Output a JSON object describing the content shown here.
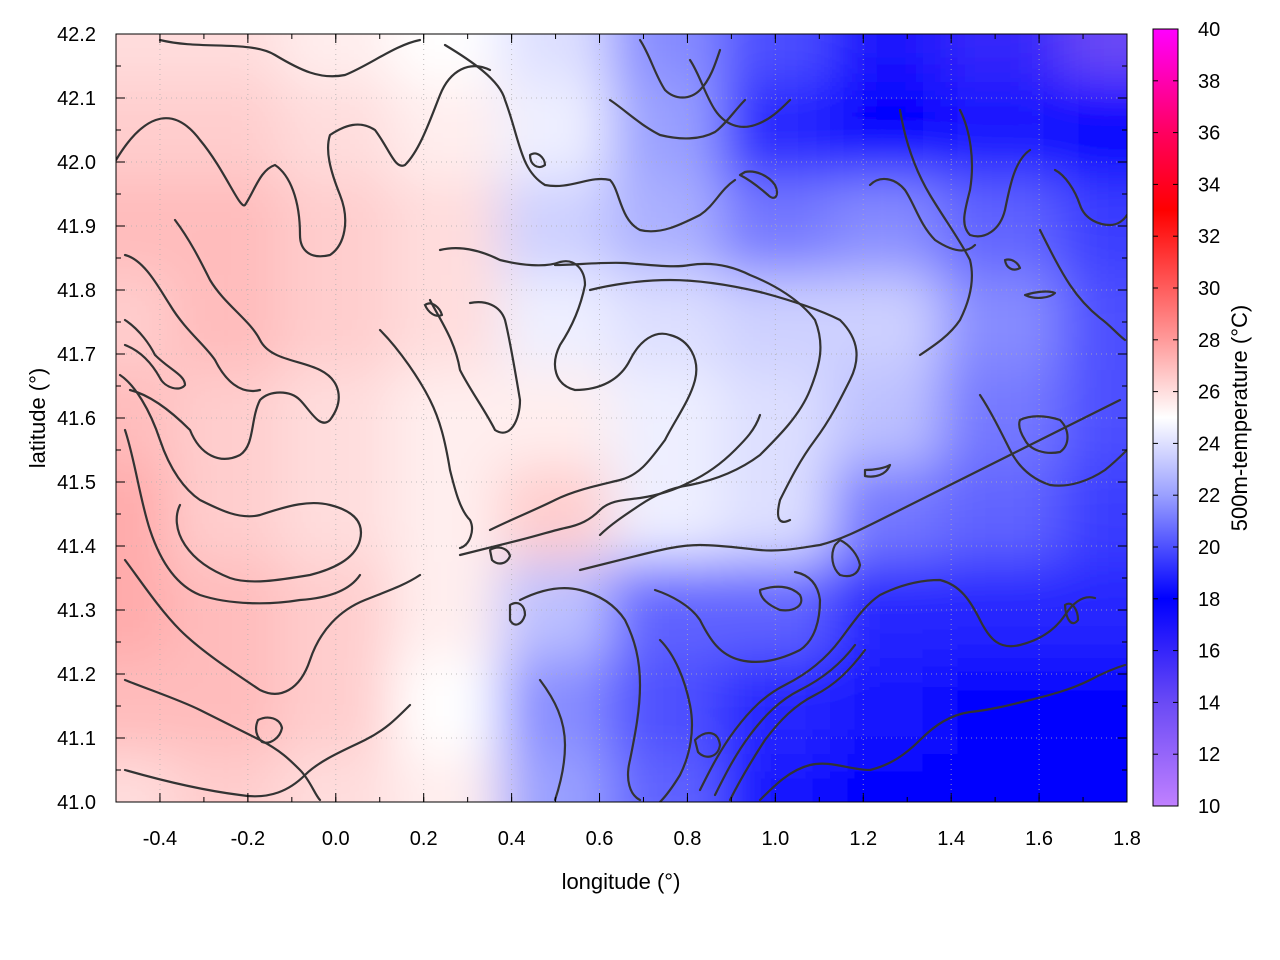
{
  "chart_data": {
    "type": "heatmap",
    "title": "",
    "xlabel": "longitude (°)",
    "ylabel": "latitude (°)",
    "colorbar_label": "500m-temperature (°C)",
    "xlim": [
      -0.5,
      1.8
    ],
    "ylim": [
      41.0,
      42.2
    ],
    "clim": [
      10,
      40
    ],
    "x_ticks": [
      -0.4,
      -0.2,
      0.0,
      0.2,
      0.4,
      0.6,
      0.8,
      1.0,
      1.2,
      1.4,
      1.6,
      1.8
    ],
    "x_tick_labels": [
      "-0.4",
      "-0.2",
      "0.0",
      "0.2",
      "0.4",
      "0.6",
      "0.8",
      "1.0",
      "1.2",
      "1.4",
      "1.6",
      "1.8"
    ],
    "y_ticks": [
      41.0,
      41.1,
      41.2,
      41.3,
      41.4,
      41.5,
      41.6,
      41.7,
      41.8,
      41.9,
      42.0,
      42.1,
      42.2
    ],
    "y_tick_labels": [
      "41.0",
      "41.1",
      "41.2",
      "41.3",
      "41.4",
      "41.5",
      "41.6",
      "41.7",
      "41.8",
      "41.9",
      "42.0",
      "42.1",
      "42.2"
    ],
    "colorbar_ticks": [
      10,
      12,
      14,
      16,
      18,
      20,
      22,
      24,
      26,
      28,
      30,
      32,
      34,
      36,
      38,
      40
    ],
    "colorbar_tick_labels": [
      "10",
      "12",
      "14",
      "16",
      "18",
      "20",
      "22",
      "24",
      "26",
      "28",
      "30",
      "32",
      "34",
      "36",
      "38",
      "40"
    ],
    "colormap": [
      {
        "value": 10,
        "color": "#c080ff"
      },
      {
        "value": 14,
        "color": "#6a4af5"
      },
      {
        "value": 18,
        "color": "#0000ff"
      },
      {
        "value": 22,
        "color": "#9aa0ff"
      },
      {
        "value": 25,
        "color": "#ffffff"
      },
      {
        "value": 28,
        "color": "#ff9a9a"
      },
      {
        "value": 33,
        "color": "#ff0000"
      },
      {
        "value": 36,
        "color": "#ff0060"
      },
      {
        "value": 40,
        "color": "#ff00ff"
      }
    ],
    "grid": true,
    "contours": true,
    "x_grid_lon": [
      -0.5,
      -0.25,
      0.0,
      0.25,
      0.5,
      0.75,
      1.0,
      1.25,
      1.5,
      1.8
    ],
    "y_grid_lat": [
      42.2,
      42.05,
      41.9,
      41.75,
      41.6,
      41.45,
      41.3,
      41.15,
      41.0
    ],
    "temperature_grid": [
      [
        26.0,
        26.0,
        25.5,
        25.0,
        24.0,
        21.5,
        20.0,
        17.0,
        16.0,
        14.0
      ],
      [
        26.5,
        26.5,
        26.0,
        25.5,
        24.5,
        22.0,
        19.0,
        18.0,
        18.5,
        18.0
      ],
      [
        27.0,
        27.0,
        26.5,
        26.0,
        23.5,
        22.5,
        21.0,
        21.5,
        20.5,
        19.5
      ],
      [
        26.5,
        27.0,
        26.5,
        26.0,
        24.5,
        24.0,
        23.5,
        23.5,
        21.5,
        20.0
      ],
      [
        27.0,
        26.5,
        26.0,
        25.5,
        25.5,
        24.5,
        24.0,
        23.0,
        21.0,
        20.0
      ],
      [
        27.5,
        26.5,
        26.0,
        25.5,
        26.5,
        24.5,
        24.0,
        21.0,
        20.5,
        19.5
      ],
      [
        27.5,
        27.0,
        26.5,
        25.5,
        23.0,
        20.5,
        20.5,
        19.0,
        19.0,
        19.0
      ],
      [
        27.0,
        27.0,
        26.5,
        25.0,
        21.5,
        20.0,
        19.0,
        18.5,
        18.0,
        18.0
      ],
      [
        26.0,
        26.5,
        26.0,
        25.5,
        22.0,
        20.5,
        18.5,
        18.0,
        18.0,
        18.0
      ]
    ]
  }
}
